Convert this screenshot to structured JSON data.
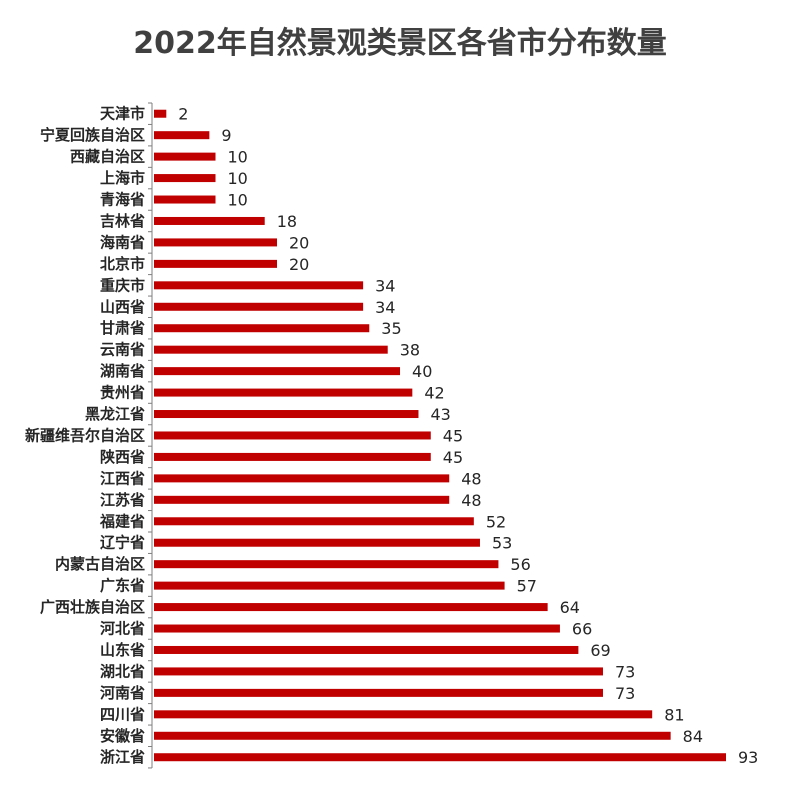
{
  "chart_data": {
    "type": "bar",
    "orientation": "horizontal",
    "title": "2022年自然景观类景区各省市分布数量",
    "xlabel": "",
    "ylabel": "",
    "xlim": [
      0,
      93
    ],
    "grid": false,
    "legend": "none",
    "bar_color": "#C00000",
    "categories": [
      "天津市",
      "宁夏回族自治区",
      "西藏自治区",
      "上海市",
      "青海省",
      "吉林省",
      "海南省",
      "北京市",
      "重庆市",
      "山西省",
      "甘肃省",
      "云南省",
      "湖南省",
      "贵州省",
      "黑龙江省",
      "新疆维吾尔自治区",
      "陕西省",
      "江西省",
      "江苏省",
      "福建省",
      "辽宁省",
      "内蒙古自治区",
      "广东省",
      "广西壮族自治区",
      "河北省",
      "山东省",
      "湖北省",
      "河南省",
      "四川省",
      "安徽省",
      "浙江省"
    ],
    "values": [
      2,
      9,
      10,
      10,
      10,
      18,
      20,
      20,
      34,
      34,
      35,
      38,
      40,
      42,
      43,
      45,
      45,
      48,
      48,
      52,
      53,
      56,
      57,
      64,
      66,
      69,
      73,
      73,
      81,
      84,
      93
    ]
  }
}
